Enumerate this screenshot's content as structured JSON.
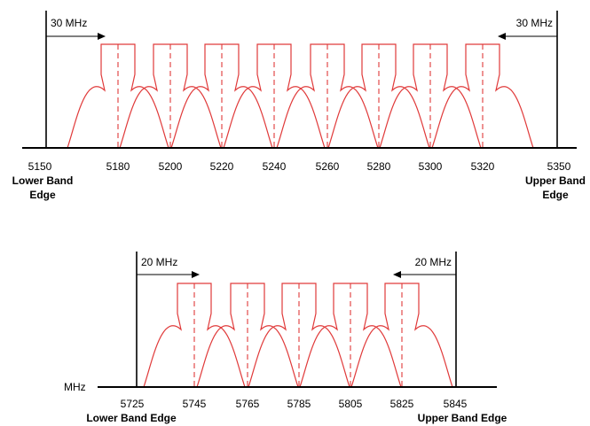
{
  "diagrams": [
    {
      "id": "top",
      "axis_unit": "",
      "ticks": [
        "5150",
        "5180",
        "5200",
        "5220",
        "5240",
        "5260",
        "5280",
        "5300",
        "5320",
        "5350"
      ],
      "channels": [
        "5180",
        "5200",
        "5220",
        "5240",
        "5260",
        "5280",
        "5300",
        "5320"
      ],
      "left_span_label": "30 MHz",
      "right_span_label": "30 MHz",
      "lower_edge_label": [
        "Lower Band",
        "Edge"
      ],
      "upper_edge_label": [
        "Upper Band",
        "Edge"
      ]
    },
    {
      "id": "bottom",
      "axis_unit": "MHz",
      "ticks": [
        "5725",
        "5745",
        "5765",
        "5785",
        "5805",
        "5825",
        "5845"
      ],
      "channels": [
        "5745",
        "5765",
        "5785",
        "5805",
        "5825"
      ],
      "left_span_label": "20 MHz",
      "right_span_label": "20 MHz",
      "lower_edge_label": [
        "Lower Band Edge"
      ],
      "upper_edge_label": [
        "Upper Band Edge"
      ]
    }
  ],
  "colors": {
    "spectrum": "#e03a3a",
    "axis": "#000000"
  }
}
